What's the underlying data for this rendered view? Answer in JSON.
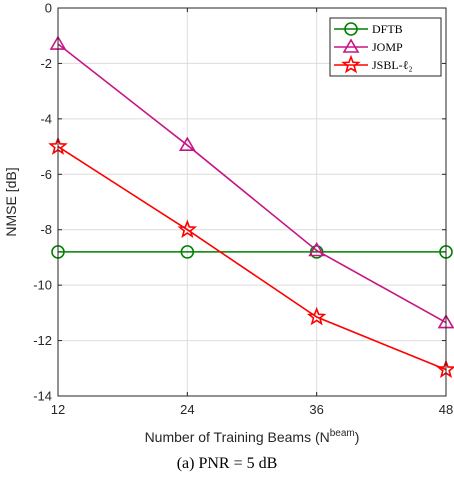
{
  "chart_data": {
    "type": "line",
    "x": [
      12,
      24,
      36,
      48
    ],
    "xticks": [
      "12",
      "24",
      "36",
      "48"
    ],
    "yticks": [
      "0",
      "-2",
      "-4",
      "-6",
      "-8",
      "-10",
      "-12",
      "-14"
    ],
    "xlim": [
      12,
      48
    ],
    "ylim": [
      -14,
      0
    ],
    "grid": true,
    "legend_position": "top-right",
    "xlabel_text": "Number of Training Beams (N",
    "xlabel_sup": "beam",
    "xlabel_close": ")",
    "ylabel": "NMSE [dB]",
    "series": [
      {
        "name": "DFTB",
        "color": "#008000",
        "marker": "circle",
        "values": [
          -8.8,
          -8.8,
          -8.8,
          -8.8
        ]
      },
      {
        "name": "JOMP",
        "color": "#C71585",
        "marker": "triangle",
        "values": [
          -1.3,
          -4.95,
          -8.75,
          -11.35
        ]
      },
      {
        "name": "JSBL-ℓ₂",
        "color": "#FF0000",
        "marker": "star",
        "values": [
          -5.0,
          -8.0,
          -11.15,
          -13.05
        ]
      }
    ]
  },
  "caption": "(a) PNR = 5 dB"
}
